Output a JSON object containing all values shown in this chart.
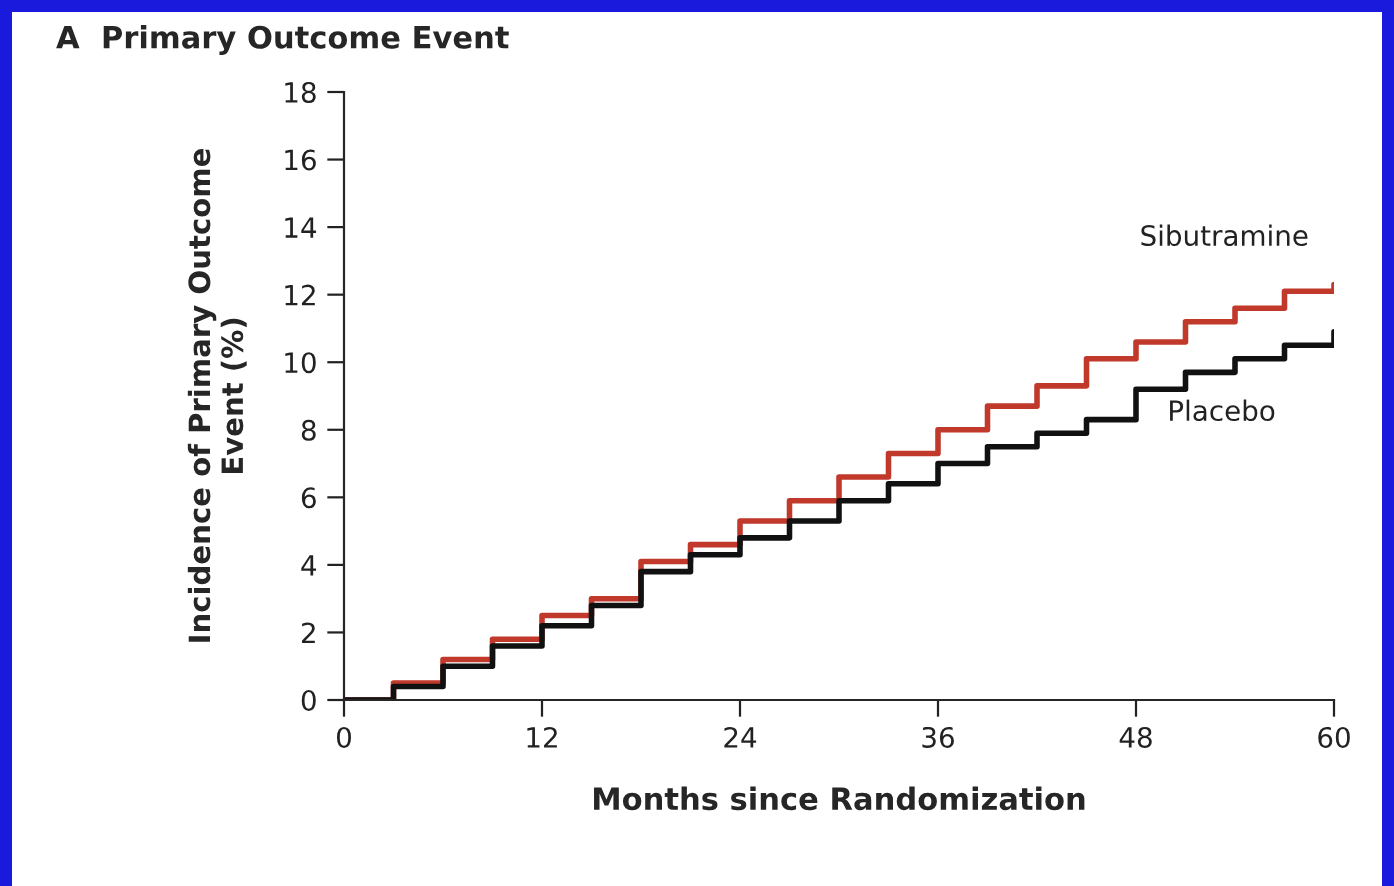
{
  "chart_data": {
    "type": "step",
    "title": "A  Primary Outcome Event",
    "xlabel": "Months since Randomization",
    "ylabel": "Incidence of Primary Outcome\nEvent (%)",
    "x": [
      0,
      3,
      6,
      9,
      12,
      15,
      18,
      21,
      24,
      27,
      30,
      33,
      36,
      39,
      42,
      45,
      48,
      51,
      54,
      57,
      60
    ],
    "series": [
      {
        "name": "Sibutramine",
        "color": "#c0392b",
        "values": [
          0,
          0.5,
          1.2,
          1.8,
          2.5,
          3.0,
          4.1,
          4.6,
          5.3,
          5.9,
          6.6,
          7.3,
          8.0,
          8.7,
          9.3,
          10.1,
          10.6,
          11.2,
          11.6,
          12.1,
          12.3
        ]
      },
      {
        "name": "Placebo",
        "color": "#111111",
        "values": [
          0,
          0.4,
          1.0,
          1.6,
          2.2,
          2.8,
          3.8,
          4.3,
          4.8,
          5.3,
          5.9,
          6.4,
          7.0,
          7.5,
          7.9,
          8.3,
          9.2,
          9.7,
          10.1,
          10.5,
          10.9
        ]
      }
    ],
    "xlim": [
      0,
      60
    ],
    "ylim": [
      0,
      18
    ],
    "xticks": [
      0,
      12,
      24,
      36,
      48,
      60
    ],
    "yticks": [
      0,
      2,
      4,
      6,
      8,
      10,
      12,
      14,
      16,
      18
    ],
    "grid": false,
    "legend": false,
    "line_style": "solid",
    "marker": "none"
  }
}
